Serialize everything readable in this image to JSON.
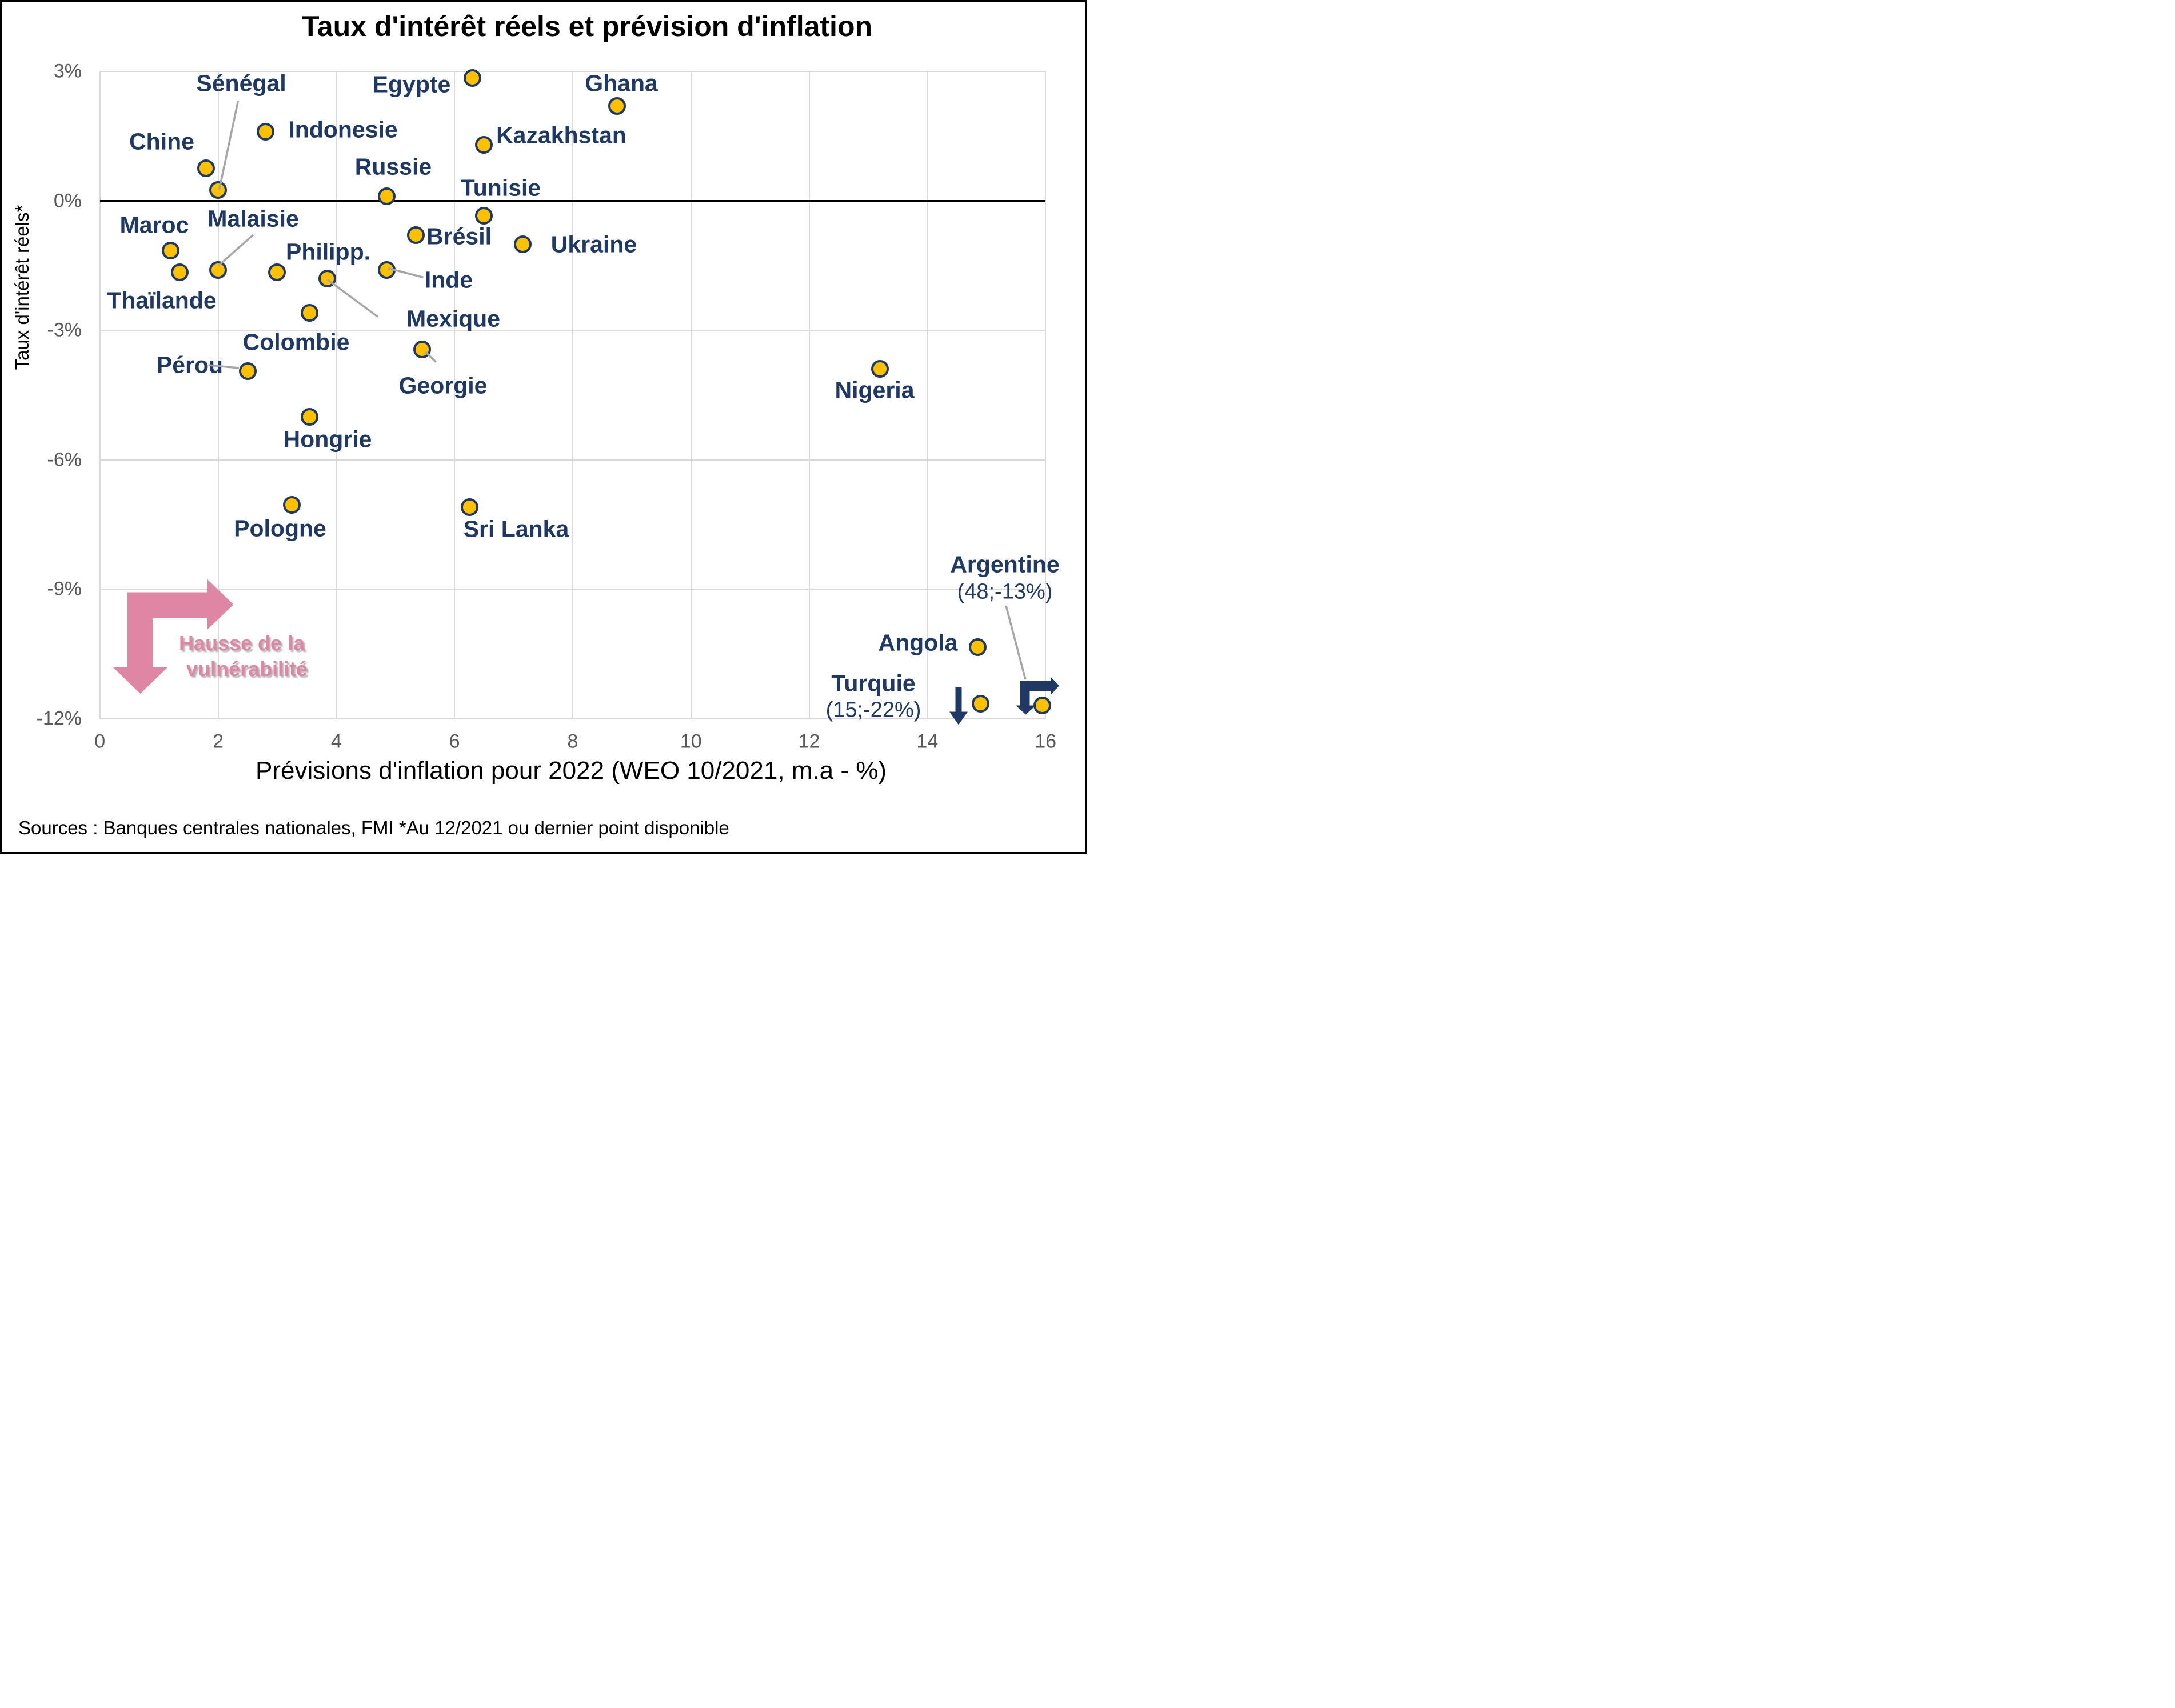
{
  "title": "Taux d'intérêt réels et prévision d'inflation",
  "source": "Sources : Banques centrales nationales, FMI *Au 12/2021 ou dernier point disponible",
  "chart_data": {
    "type": "scatter",
    "title": "Taux d'intérêt réels et prévision d'inflation",
    "xlabel": "Prévisions d'inflation pour 2022 (WEO 10/2021, m.a - %)",
    "ylabel": "Taux d'intérêt réels*",
    "xlim": [
      0,
      16
    ],
    "ylim": [
      -12,
      3
    ],
    "x_ticks": [
      0,
      2,
      4,
      6,
      8,
      10,
      12,
      14,
      16
    ],
    "y_ticks": [
      3,
      0,
      -3,
      -6,
      -9,
      -12
    ],
    "y_tick_suffix": "%",
    "grid": true,
    "zero_axis": true,
    "legend": "none",
    "colors": {
      "marker_fill": "#FFC000",
      "marker_stroke": "#1F3864",
      "label_text": "#1F3864",
      "gridline": "#D9D9D9",
      "tick_text": "#595959",
      "callout_line": "#A6A6A6",
      "annotation_pink": "#DF86A4",
      "offscale_arrow_navy": "#1F3864"
    },
    "points": [
      {
        "label": "Chine",
        "x": 1.8,
        "y": 0.75
      },
      {
        "label": "Sénégal",
        "x": 2.0,
        "y": 0.25
      },
      {
        "label": "Indonesie",
        "x": 2.8,
        "y": 1.6
      },
      {
        "label": "Egypte",
        "x": 6.3,
        "y": 2.85
      },
      {
        "label": "Ghana",
        "x": 8.75,
        "y": 2.2
      },
      {
        "label": "Kazakhstan",
        "x": 6.5,
        "y": 1.3
      },
      {
        "label": "Russie",
        "x": 4.85,
        "y": 0.1
      },
      {
        "label": "Tunisie",
        "x": 6.5,
        "y": -0.35
      },
      {
        "label": "Maroc",
        "x": 1.2,
        "y": -1.15
      },
      {
        "label": "Thaïlande",
        "x": 1.35,
        "y": -1.65
      },
      {
        "label": "Malaisie",
        "x": 2.0,
        "y": -1.6
      },
      {
        "label": "Philipp.",
        "x": 3.0,
        "y": -1.65
      },
      {
        "label": "Mexique",
        "x": 3.85,
        "y": -1.8
      },
      {
        "label": "Inde",
        "x": 4.85,
        "y": -1.6
      },
      {
        "label": "Brésil",
        "x": 5.35,
        "y": -0.8
      },
      {
        "label": "Ukraine",
        "x": 7.15,
        "y": -1.0
      },
      {
        "label": "Colombie",
        "x": 3.55,
        "y": -2.6
      },
      {
        "label": "Pérou",
        "x": 2.5,
        "y": -3.95
      },
      {
        "label": "Georgie",
        "x": 5.45,
        "y": -3.45
      },
      {
        "label": "Hongrie",
        "x": 3.55,
        "y": -5.0
      },
      {
        "label": "Pologne",
        "x": 3.25,
        "y": -7.05
      },
      {
        "label": "Sri Lanka",
        "x": 6.25,
        "y": -7.1
      },
      {
        "label": "Nigeria",
        "x": 13.2,
        "y": -3.9
      },
      {
        "label": "Angola",
        "x": 14.85,
        "y": -10.35
      },
      {
        "label": "Turquie",
        "x": 14.9,
        "y": -11.65,
        "note": "(15;-22%)",
        "offscale": "down"
      },
      {
        "label": "Argentine",
        "x": 15.95,
        "y": -11.7,
        "note": "(48;-13%)",
        "offscale": "down-right"
      }
    ],
    "annotation": {
      "line1": "Hausse de la",
      "line2": "vulnérabilité",
      "color": "#DF86A4"
    }
  }
}
